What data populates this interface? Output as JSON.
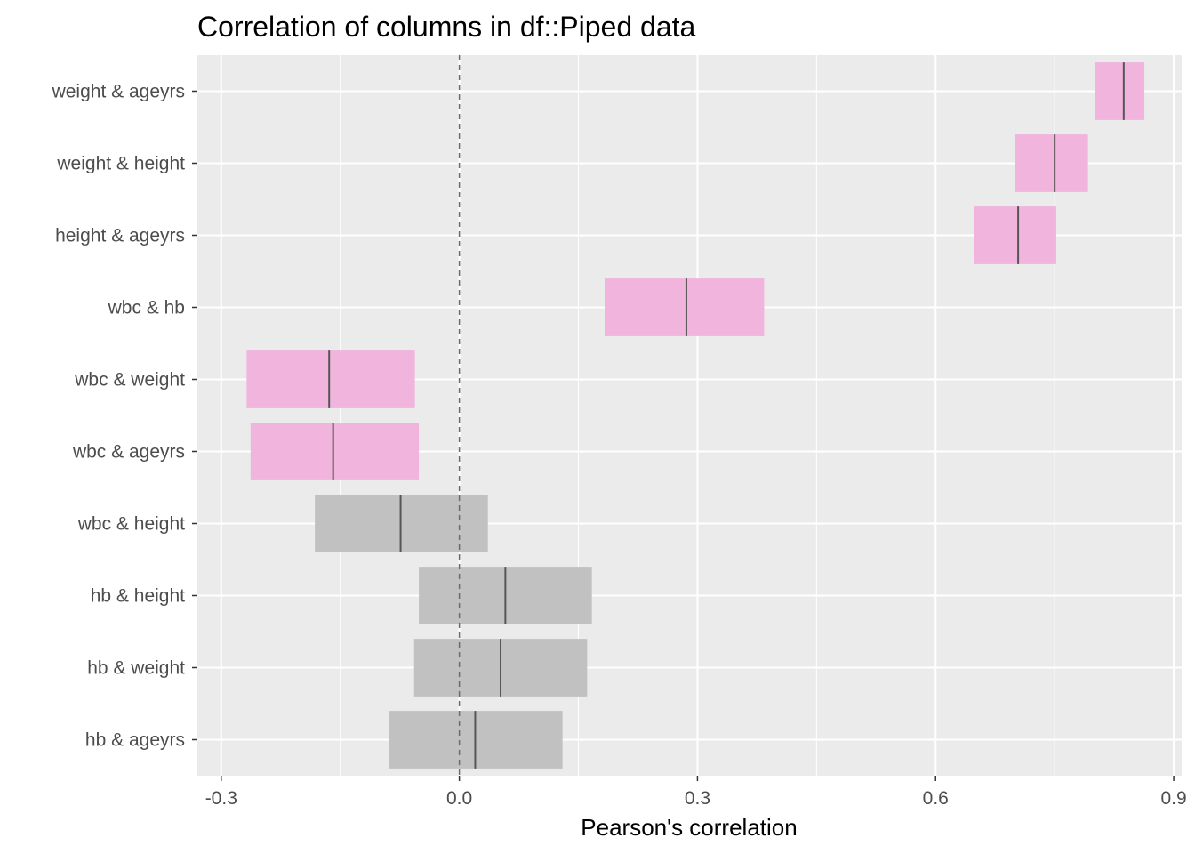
{
  "chart_data": {
    "type": "bar",
    "title": "Correlation of columns in df::Piped data",
    "xlabel": "Pearson's correlation",
    "ylabel": "",
    "xlim": [
      -0.33,
      0.91
    ],
    "x_ticks": [
      -0.3,
      0.0,
      0.3,
      0.6,
      0.9
    ],
    "x_tick_labels": [
      "-0.3",
      "0.0",
      "0.3",
      "0.6",
      "0.9"
    ],
    "grid": true,
    "reference_line": 0.0,
    "significant_color": "#f1b5dd",
    "nonsignificant_color": "#c1c1c1",
    "rows": [
      {
        "label": "weight & ageyrs",
        "estimate": 0.837,
        "lower": 0.801,
        "upper": 0.863,
        "significant": true
      },
      {
        "label": "weight & height",
        "estimate": 0.75,
        "lower": 0.7,
        "upper": 0.792,
        "significant": true
      },
      {
        "label": "height & ageyrs",
        "estimate": 0.704,
        "lower": 0.648,
        "upper": 0.752,
        "significant": true
      },
      {
        "label": "wbc & hb",
        "estimate": 0.286,
        "lower": 0.183,
        "upper": 0.384,
        "significant": true
      },
      {
        "label": "wbc & weight",
        "estimate": -0.164,
        "lower": -0.268,
        "upper": -0.056,
        "significant": true
      },
      {
        "label": "wbc & ageyrs",
        "estimate": -0.159,
        "lower": -0.263,
        "upper": -0.051,
        "significant": true
      },
      {
        "label": "wbc & height",
        "estimate": -0.074,
        "lower": -0.182,
        "upper": 0.036,
        "significant": false
      },
      {
        "label": "hb & height",
        "estimate": 0.058,
        "lower": -0.051,
        "upper": 0.167,
        "significant": false
      },
      {
        "label": "hb & weight",
        "estimate": 0.052,
        "lower": -0.057,
        "upper": 0.161,
        "significant": false
      },
      {
        "label": "hb & ageyrs",
        "estimate": 0.02,
        "lower": -0.089,
        "upper": 0.13,
        "significant": false
      }
    ]
  }
}
